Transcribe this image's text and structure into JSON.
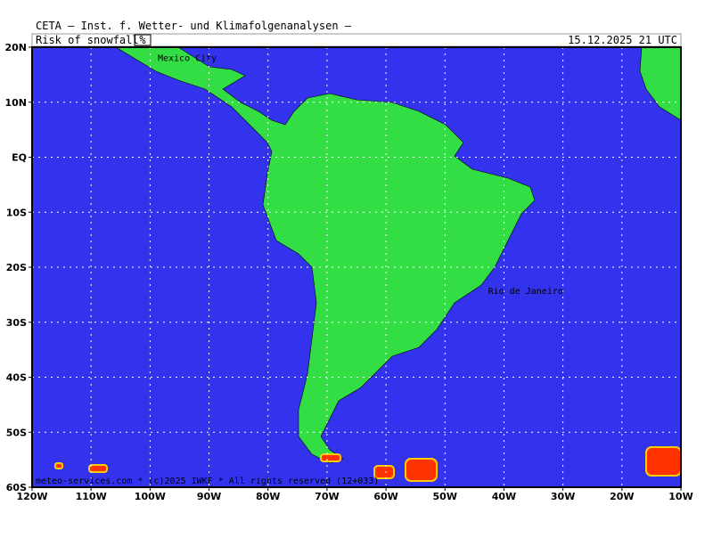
{
  "header": {
    "institute": "CETA — Inst. f. Wetter- und Klimafolgenanalysen —",
    "parameter": "Risk of snowfall",
    "unit": "%",
    "valid_time": "15.12.2025 21 UTC"
  },
  "map": {
    "lon_range": [
      -120,
      -10
    ],
    "lat_range": [
      -60,
      20
    ],
    "lat_ticks": [
      {
        "value": 20,
        "label": "20N"
      },
      {
        "value": 10,
        "label": "10N"
      },
      {
        "value": 0,
        "label": "EQ"
      },
      {
        "value": -10,
        "label": "10S"
      },
      {
        "value": -20,
        "label": "20S"
      },
      {
        "value": -30,
        "label": "30S"
      },
      {
        "value": -40,
        "label": "40S"
      },
      {
        "value": -50,
        "label": "50S"
      },
      {
        "value": -60,
        "label": "60S"
      }
    ],
    "lon_ticks": [
      {
        "value": -120,
        "label": "120W"
      },
      {
        "value": -110,
        "label": "110W"
      },
      {
        "value": -100,
        "label": "100W"
      },
      {
        "value": -90,
        "label": "90W"
      },
      {
        "value": -80,
        "label": "80W"
      },
      {
        "value": -70,
        "label": "70W"
      },
      {
        "value": -60,
        "label": "60W"
      },
      {
        "value": -50,
        "label": "50W"
      },
      {
        "value": -40,
        "label": "40W"
      },
      {
        "value": -30,
        "label": "30W"
      },
      {
        "value": -20,
        "label": "20W"
      },
      {
        "value": -10,
        "label": "10W"
      }
    ],
    "cities": [
      {
        "name": "Mexico City",
        "lon": -99,
        "lat": 19.4
      },
      {
        "name": "Rio de Janeiro",
        "lon": -43,
        "lat": -22.9
      }
    ]
  },
  "footer": "meteo-services.com * (c)2025 IWKF * All rights reserved (12+033)"
}
